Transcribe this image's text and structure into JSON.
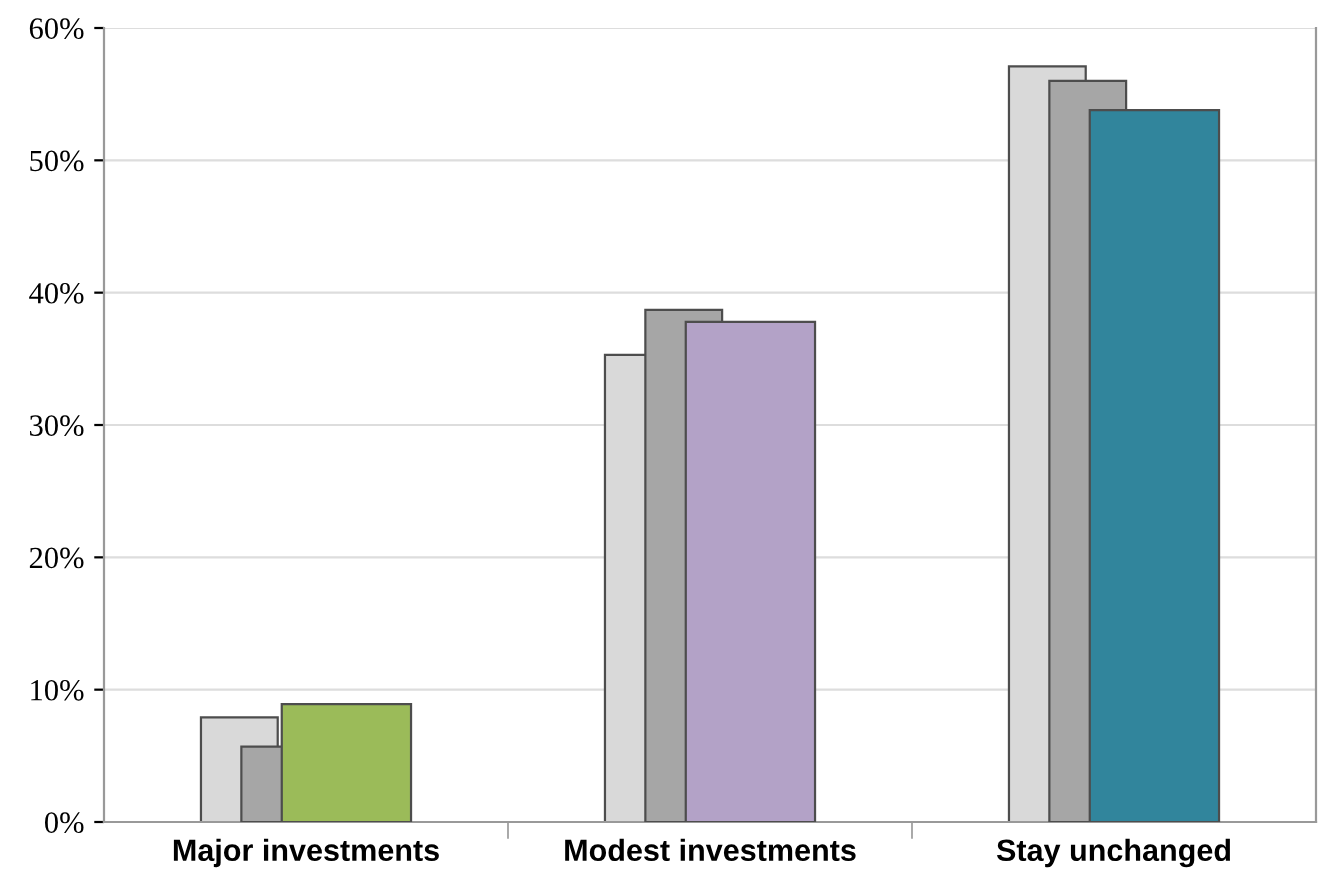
{
  "chart_data": {
    "type": "bar",
    "categories": [
      "Major investments",
      "Modest investments",
      "Stay unchanged"
    ],
    "series": [
      {
        "color": "#d9d9d9",
        "values": [
          7.9,
          35.3,
          57.1
        ]
      },
      {
        "color": "#a6a6a6",
        "values": [
          5.7,
          38.7,
          56.0
        ]
      },
      {
        "colors": [
          "#9bbb59",
          "#b3a2c7",
          "#31859c"
        ],
        "values": [
          8.9,
          37.8,
          53.8
        ]
      }
    ],
    "ylim": [
      0,
      60
    ],
    "yticks": [
      {
        "value": 0,
        "label": "0%"
      },
      {
        "value": 10,
        "label": "10%"
      },
      {
        "value": 20,
        "label": "20%"
      },
      {
        "value": 30,
        "label": "30%"
      },
      {
        "value": 40,
        "label": "40%"
      },
      {
        "value": 50,
        "label": "50%"
      },
      {
        "value": 60,
        "label": "60%"
      }
    ],
    "grid": "y",
    "legend": false
  }
}
